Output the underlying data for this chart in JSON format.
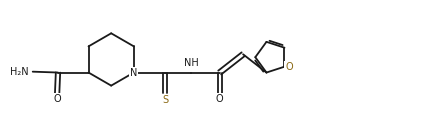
{
  "bg_color": "#ffffff",
  "bond_color": "#1a1a1a",
  "s_color": "#8B6914",
  "o_color": "#8B6914",
  "figsize": [
    4.36,
    1.32
  ],
  "dpi": 100,
  "lw": 1.3,
  "fs": 7.0,
  "xlim": [
    0,
    10
  ],
  "ylim": [
    0,
    3
  ]
}
